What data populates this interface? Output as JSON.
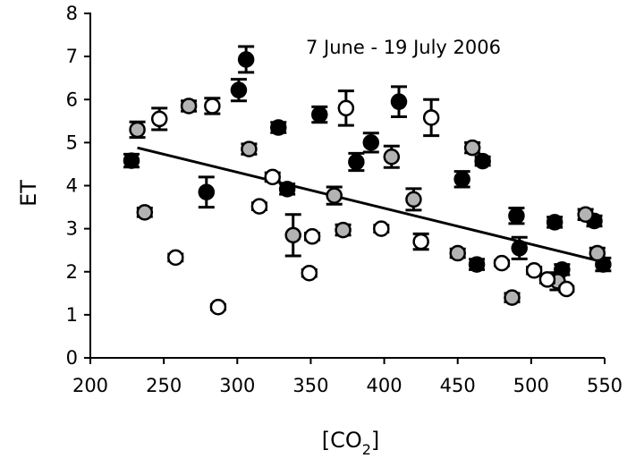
{
  "chart_data": {
    "type": "scatter",
    "title": "",
    "annotation": "7 June - 19 July 2006",
    "xlabel": "[CO",
    "xlabel_sub": "2",
    "xlabel_close": "]",
    "ylabel": "ET",
    "xlim": [
      200,
      550
    ],
    "ylim": [
      0,
      8
    ],
    "xticks": [
      "200",
      "250",
      "300",
      "350",
      "400",
      "450",
      "500",
      "550"
    ],
    "yticks": [
      "0",
      "1",
      "2",
      "3",
      "4",
      "5",
      "6",
      "7",
      "8"
    ],
    "grid": false,
    "legend": "none",
    "colors": {
      "black": "#000000",
      "gray": "#b3b3b3",
      "white": "#ffffff"
    },
    "series": [
      {
        "marker": "filled-black",
        "points": [
          {
            "x": 228,
            "y": 4.58,
            "err": 0.15
          },
          {
            "x": 279,
            "y": 3.85,
            "err": 0.35
          },
          {
            "x": 301,
            "y": 6.22,
            "err": 0.25
          },
          {
            "x": 306,
            "y": 6.93,
            "err": 0.3
          },
          {
            "x": 328,
            "y": 5.35,
            "err": 0.12
          },
          {
            "x": 334,
            "y": 3.92,
            "err": 0.12
          },
          {
            "x": 356,
            "y": 5.65,
            "err": 0.18
          },
          {
            "x": 381,
            "y": 4.55,
            "err": 0.2
          },
          {
            "x": 391,
            "y": 5.0,
            "err": 0.22
          },
          {
            "x": 410,
            "y": 5.95,
            "err": 0.35
          },
          {
            "x": 453,
            "y": 4.15,
            "err": 0.18
          },
          {
            "x": 463,
            "y": 2.17,
            "err": 0.12
          },
          {
            "x": 467,
            "y": 4.57,
            "err": 0.1
          },
          {
            "x": 490,
            "y": 3.3,
            "err": 0.18
          },
          {
            "x": 492,
            "y": 2.55,
            "err": 0.25
          },
          {
            "x": 516,
            "y": 3.15,
            "err": 0.12
          },
          {
            "x": 521,
            "y": 2.05,
            "err": 0.12
          },
          {
            "x": 543,
            "y": 3.18,
            "err": 0.12
          },
          {
            "x": 549,
            "y": 2.17,
            "err": 0.15
          }
        ]
      },
      {
        "marker": "filled-gray",
        "points": [
          {
            "x": 232,
            "y": 5.3,
            "err": 0.18
          },
          {
            "x": 237,
            "y": 3.38,
            "err": 0.1
          },
          {
            "x": 267,
            "y": 5.85,
            "err": 0.12
          },
          {
            "x": 308,
            "y": 4.85,
            "err": 0.12
          },
          {
            "x": 338,
            "y": 2.85,
            "err": 0.48
          },
          {
            "x": 366,
            "y": 3.77,
            "err": 0.2
          },
          {
            "x": 372,
            "y": 2.97,
            "err": 0.12
          },
          {
            "x": 405,
            "y": 4.67,
            "err": 0.25
          },
          {
            "x": 420,
            "y": 3.68,
            "err": 0.25
          },
          {
            "x": 450,
            "y": 2.43,
            "err": 0.1
          },
          {
            "x": 460,
            "y": 4.88,
            "err": 0.12
          },
          {
            "x": 487,
            "y": 1.4,
            "err": 0.1
          },
          {
            "x": 518,
            "y": 1.78,
            "err": 0.2
          },
          {
            "x": 537,
            "y": 3.33,
            "err": 0.12
          },
          {
            "x": 545,
            "y": 2.43,
            "err": 0.12
          }
        ]
      },
      {
        "marker": "open-white",
        "points": [
          {
            "x": 247,
            "y": 5.55,
            "err": 0.25
          },
          {
            "x": 258,
            "y": 2.33,
            "err": 0.08
          },
          {
            "x": 283,
            "y": 5.85,
            "err": 0.18
          },
          {
            "x": 287,
            "y": 1.18,
            "err": 0.06
          },
          {
            "x": 315,
            "y": 3.52,
            "err": 0.08
          },
          {
            "x": 324,
            "y": 4.2,
            "err": 0.1
          },
          {
            "x": 349,
            "y": 1.97,
            "err": 0.08
          },
          {
            "x": 351,
            "y": 2.82,
            "err": 0.08
          },
          {
            "x": 374,
            "y": 5.8,
            "err": 0.4
          },
          {
            "x": 398,
            "y": 3.0,
            "err": 0.08
          },
          {
            "x": 425,
            "y": 2.7,
            "err": 0.18
          },
          {
            "x": 432,
            "y": 5.58,
            "err": 0.42
          },
          {
            "x": 480,
            "y": 2.2,
            "err": 0.06
          },
          {
            "x": 502,
            "y": 2.03,
            "err": 0.08
          },
          {
            "x": 511,
            "y": 1.82,
            "err": 0.08
          },
          {
            "x": 524,
            "y": 1.6,
            "err": 0.06
          }
        ]
      }
    ],
    "trendline": {
      "x1": 232,
      "y1": 4.88,
      "x2": 550,
      "y2": 2.22
    }
  }
}
